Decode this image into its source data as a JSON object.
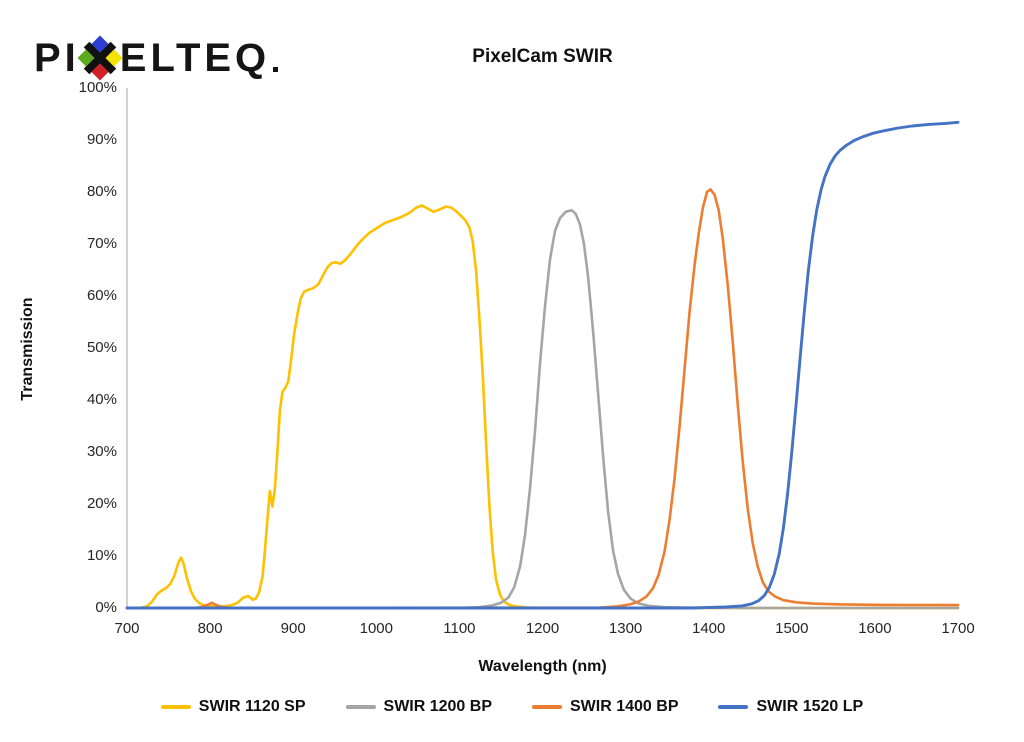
{
  "logo": {
    "part1": "PI",
    "part2": "ELTEQ",
    "mark_colors": {
      "top": "#2b3fd4",
      "left": "#5daa1c",
      "right": "#f2e400",
      "bottom": "#d22027"
    }
  },
  "title": "PixelCam SWIR",
  "axes": {
    "x_title": "Wavelength (nm)",
    "y_title": "Transmission",
    "x_tick_labels": [
      "700",
      "800",
      "900",
      "1000",
      "1100",
      "1200",
      "1300",
      "1400",
      "1500",
      "1600",
      "1700"
    ],
    "x_tick_values": [
      700,
      800,
      900,
      1000,
      1100,
      1200,
      1300,
      1400,
      1500,
      1600,
      1700
    ],
    "y_tick_labels": [
      "0%",
      "10%",
      "20%",
      "30%",
      "40%",
      "50%",
      "60%",
      "70%",
      "80%",
      "90%",
      "100%"
    ],
    "y_tick_values": [
      0,
      10,
      20,
      30,
      40,
      50,
      60,
      70,
      80,
      90,
      100
    ],
    "axis_line_color": "#bfbfbf"
  },
  "chart_data": {
    "type": "line",
    "title": "PixelCam SWIR",
    "xlabel": "Wavelength (nm)",
    "ylabel": "Transmission",
    "xlim": [
      700,
      1700
    ],
    "ylim": [
      0,
      100
    ],
    "grid": false,
    "legend_position": "bottom",
    "series": [
      {
        "name": "SWIR 1120 SP",
        "color": "#FFC000",
        "width": 2.6,
        "points": [
          [
            700,
            0
          ],
          [
            715,
            0
          ],
          [
            724,
            0.3
          ],
          [
            730,
            1.2
          ],
          [
            736,
            2.6
          ],
          [
            742,
            3.4
          ],
          [
            747,
            3.8
          ],
          [
            752,
            4.6
          ],
          [
            757,
            6.2
          ],
          [
            762,
            8.8
          ],
          [
            765,
            9.7
          ],
          [
            768,
            8.6
          ],
          [
            772,
            5.8
          ],
          [
            777,
            3.2
          ],
          [
            782,
            1.7
          ],
          [
            788,
            0.8
          ],
          [
            795,
            0.4
          ],
          [
            805,
            0.3
          ],
          [
            815,
            0.3
          ],
          [
            825,
            0.5
          ],
          [
            833,
            1
          ],
          [
            840,
            2
          ],
          [
            846,
            2.3
          ],
          [
            851,
            1.6
          ],
          [
            855,
            1.8
          ],
          [
            859,
            3
          ],
          [
            863,
            6
          ],
          [
            866,
            11
          ],
          [
            869,
            17
          ],
          [
            872,
            22.5
          ],
          [
            875,
            19.5
          ],
          [
            878,
            23
          ],
          [
            881,
            30
          ],
          [
            884,
            38
          ],
          [
            887,
            41.5
          ],
          [
            891,
            42.5
          ],
          [
            894,
            43.5
          ],
          [
            897,
            47
          ],
          [
            901,
            52.5
          ],
          [
            905,
            56.5
          ],
          [
            909,
            59.5
          ],
          [
            913,
            60.8
          ],
          [
            918,
            61.2
          ],
          [
            924,
            61.5
          ],
          [
            930,
            62.2
          ],
          [
            936,
            64
          ],
          [
            941,
            65.5
          ],
          [
            946,
            66.3
          ],
          [
            951,
            66.5
          ],
          [
            957,
            66.2
          ],
          [
            963,
            67
          ],
          [
            970,
            68.3
          ],
          [
            977,
            69.8
          ],
          [
            984,
            71
          ],
          [
            992,
            72.2
          ],
          [
            1000,
            73
          ],
          [
            1010,
            74
          ],
          [
            1020,
            74.6
          ],
          [
            1030,
            75.2
          ],
          [
            1040,
            76
          ],
          [
            1048,
            77
          ],
          [
            1055,
            77.4
          ],
          [
            1062,
            76.8
          ],
          [
            1069,
            76.2
          ],
          [
            1077,
            76.7
          ],
          [
            1084,
            77.2
          ],
          [
            1090,
            77
          ],
          [
            1096,
            76.3
          ],
          [
            1102,
            75.4
          ],
          [
            1107,
            74.6
          ],
          [
            1112,
            73.2
          ],
          [
            1116,
            70.5
          ],
          [
            1120,
            65
          ],
          [
            1124,
            56
          ],
          [
            1128,
            45
          ],
          [
            1132,
            32
          ],
          [
            1136,
            20
          ],
          [
            1140,
            11
          ],
          [
            1144,
            5.5
          ],
          [
            1149,
            2.5
          ],
          [
            1154,
            1.2
          ],
          [
            1160,
            0.6
          ],
          [
            1168,
            0.3
          ],
          [
            1180,
            0.1
          ],
          [
            1200,
            0
          ],
          [
            1700,
            0
          ]
        ]
      },
      {
        "name": "SWIR 1200 BP",
        "color": "#A5A5A5",
        "width": 2.6,
        "points": [
          [
            700,
            0
          ],
          [
            1100,
            0
          ],
          [
            1125,
            0.2
          ],
          [
            1140,
            0.5
          ],
          [
            1150,
            1
          ],
          [
            1159,
            2
          ],
          [
            1166,
            4
          ],
          [
            1173,
            8
          ],
          [
            1179,
            14
          ],
          [
            1185,
            23
          ],
          [
            1191,
            34
          ],
          [
            1197,
            47
          ],
          [
            1203,
            58
          ],
          [
            1209,
            67
          ],
          [
            1215,
            72.5
          ],
          [
            1221,
            75
          ],
          [
            1228,
            76.2
          ],
          [
            1235,
            76.5
          ],
          [
            1240,
            75.8
          ],
          [
            1245,
            73.8
          ],
          [
            1250,
            70
          ],
          [
            1255,
            63.5
          ],
          [
            1261,
            53
          ],
          [
            1267,
            41
          ],
          [
            1273,
            29
          ],
          [
            1279,
            18.5
          ],
          [
            1285,
            11
          ],
          [
            1291,
            6.5
          ],
          [
            1298,
            3.5
          ],
          [
            1306,
            1.8
          ],
          [
            1315,
            0.9
          ],
          [
            1328,
            0.4
          ],
          [
            1345,
            0.2
          ],
          [
            1370,
            0.1
          ],
          [
            1420,
            0
          ],
          [
            1700,
            0
          ]
        ]
      },
      {
        "name": "SWIR 1400 BP",
        "color": "#ED7D31",
        "width": 2.6,
        "points": [
          [
            700,
            0
          ],
          [
            780,
            0
          ],
          [
            790,
            0.2
          ],
          [
            797,
            0.6
          ],
          [
            802,
            1
          ],
          [
            807,
            0.6
          ],
          [
            814,
            0.2
          ],
          [
            825,
            0
          ],
          [
            1270,
            0.1
          ],
          [
            1290,
            0.3
          ],
          [
            1305,
            0.7
          ],
          [
            1315,
            1.2
          ],
          [
            1325,
            2.2
          ],
          [
            1333,
            3.8
          ],
          [
            1340,
            6.5
          ],
          [
            1347,
            11
          ],
          [
            1353,
            17
          ],
          [
            1359,
            25
          ],
          [
            1365,
            35
          ],
          [
            1371,
            46
          ],
          [
            1377,
            57
          ],
          [
            1383,
            66
          ],
          [
            1388,
            72
          ],
          [
            1393,
            77
          ],
          [
            1398,
            80
          ],
          [
            1402,
            80.5
          ],
          [
            1407,
            79.5
          ],
          [
            1412,
            76.5
          ],
          [
            1417,
            71
          ],
          [
            1423,
            62
          ],
          [
            1429,
            51
          ],
          [
            1435,
            39
          ],
          [
            1441,
            28
          ],
          [
            1447,
            19
          ],
          [
            1453,
            12.5
          ],
          [
            1459,
            8
          ],
          [
            1465,
            5
          ],
          [
            1472,
            3.2
          ],
          [
            1480,
            2.2
          ],
          [
            1490,
            1.5
          ],
          [
            1505,
            1.1
          ],
          [
            1525,
            0.85
          ],
          [
            1560,
            0.7
          ],
          [
            1610,
            0.6
          ],
          [
            1700,
            0.55
          ]
        ]
      },
      {
        "name": "SWIR 1520 LP",
        "color": "#4472C4",
        "width": 2.9,
        "points": [
          [
            700,
            0
          ],
          [
            1380,
            0
          ],
          [
            1420,
            0.2
          ],
          [
            1440,
            0.4
          ],
          [
            1452,
            0.8
          ],
          [
            1460,
            1.4
          ],
          [
            1467,
            2.4
          ],
          [
            1473,
            4
          ],
          [
            1479,
            6.5
          ],
          [
            1485,
            10.5
          ],
          [
            1490,
            15.5
          ],
          [
            1495,
            22
          ],
          [
            1500,
            30
          ],
          [
            1505,
            39
          ],
          [
            1510,
            48
          ],
          [
            1515,
            57
          ],
          [
            1520,
            65
          ],
          [
            1525,
            71.5
          ],
          [
            1530,
            76.5
          ],
          [
            1535,
            80.3
          ],
          [
            1540,
            83
          ],
          [
            1546,
            85.3
          ],
          [
            1552,
            86.9
          ],
          [
            1558,
            88
          ],
          [
            1566,
            89
          ],
          [
            1575,
            89.9
          ],
          [
            1585,
            90.6
          ],
          [
            1598,
            91.3
          ],
          [
            1612,
            91.8
          ],
          [
            1628,
            92.3
          ],
          [
            1645,
            92.7
          ],
          [
            1665,
            93
          ],
          [
            1685,
            93.2
          ],
          [
            1700,
            93.4
          ]
        ]
      }
    ]
  }
}
